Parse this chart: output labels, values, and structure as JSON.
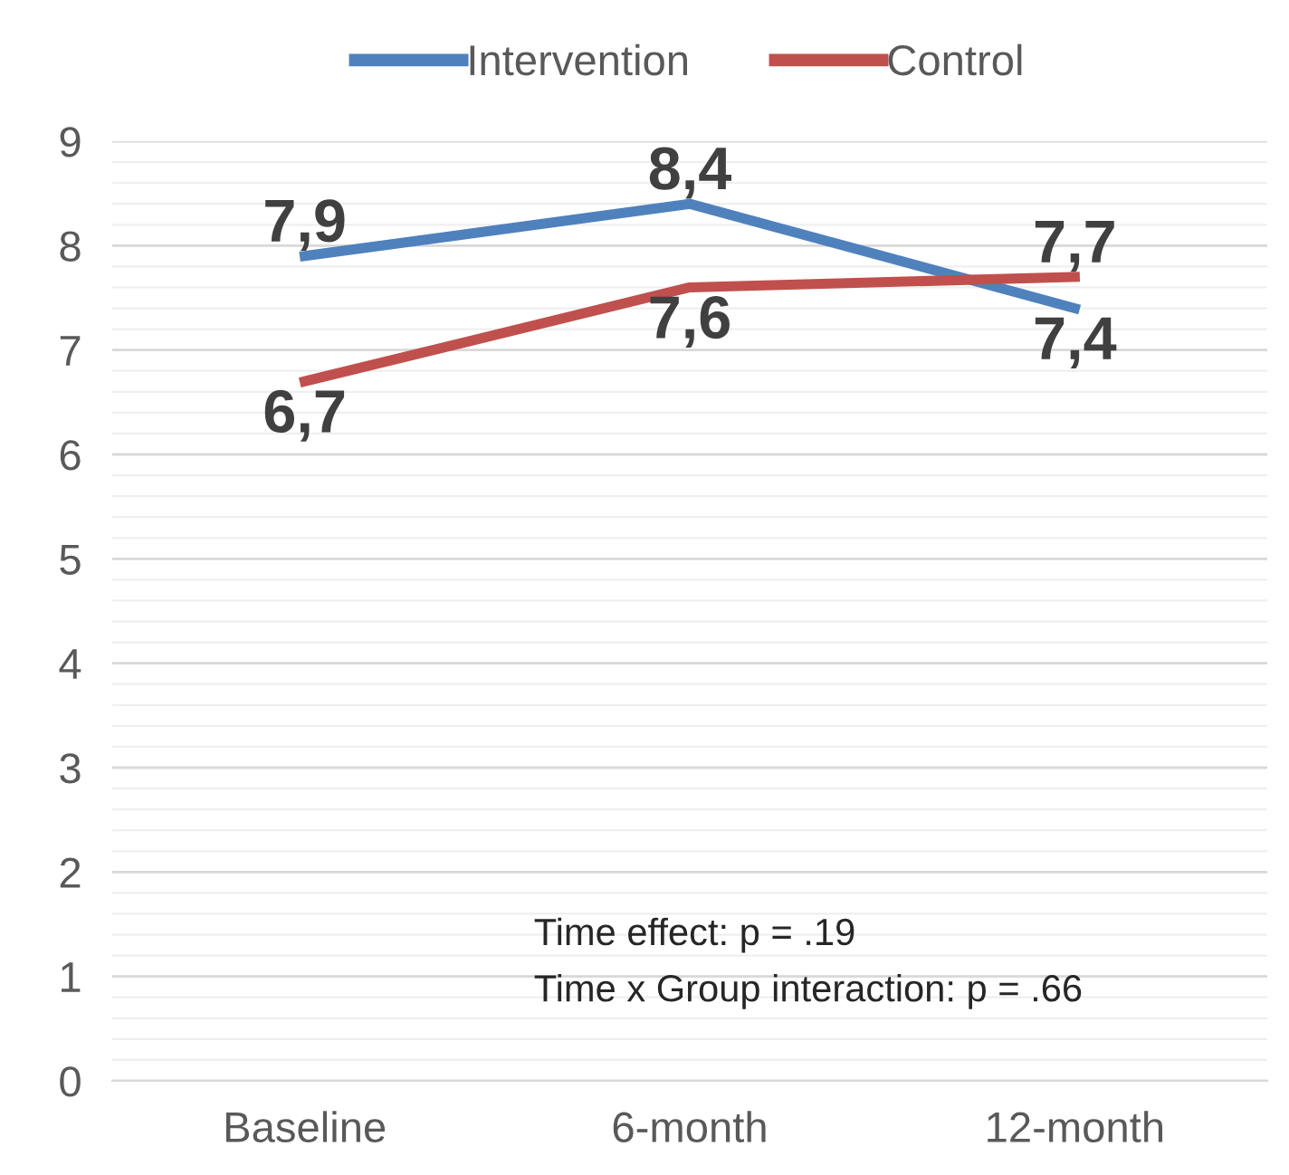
{
  "chart_data": {
    "type": "line",
    "categories": [
      "Baseline",
      "6-month",
      "12-month"
    ],
    "series": [
      {
        "name": "Intervention",
        "color": "#4f81bd",
        "values": [
          7.9,
          8.4,
          7.4
        ],
        "value_labels": [
          "7,9",
          "8,4",
          "7,4"
        ]
      },
      {
        "name": "Control",
        "color": "#c0504d",
        "values": [
          6.7,
          7.6,
          7.7
        ],
        "value_labels": [
          "6,7",
          "7,6",
          "7,7"
        ]
      }
    ],
    "ylim": [
      0,
      9
    ],
    "yticks": [
      0,
      1,
      2,
      3,
      4,
      5,
      6,
      7,
      8,
      9
    ],
    "grid": "y",
    "legend": "top",
    "marker": "none",
    "line_style": "solid",
    "annotations": [
      "Time effect: p = .19",
      "Time x Group interaction: p = .66"
    ]
  }
}
